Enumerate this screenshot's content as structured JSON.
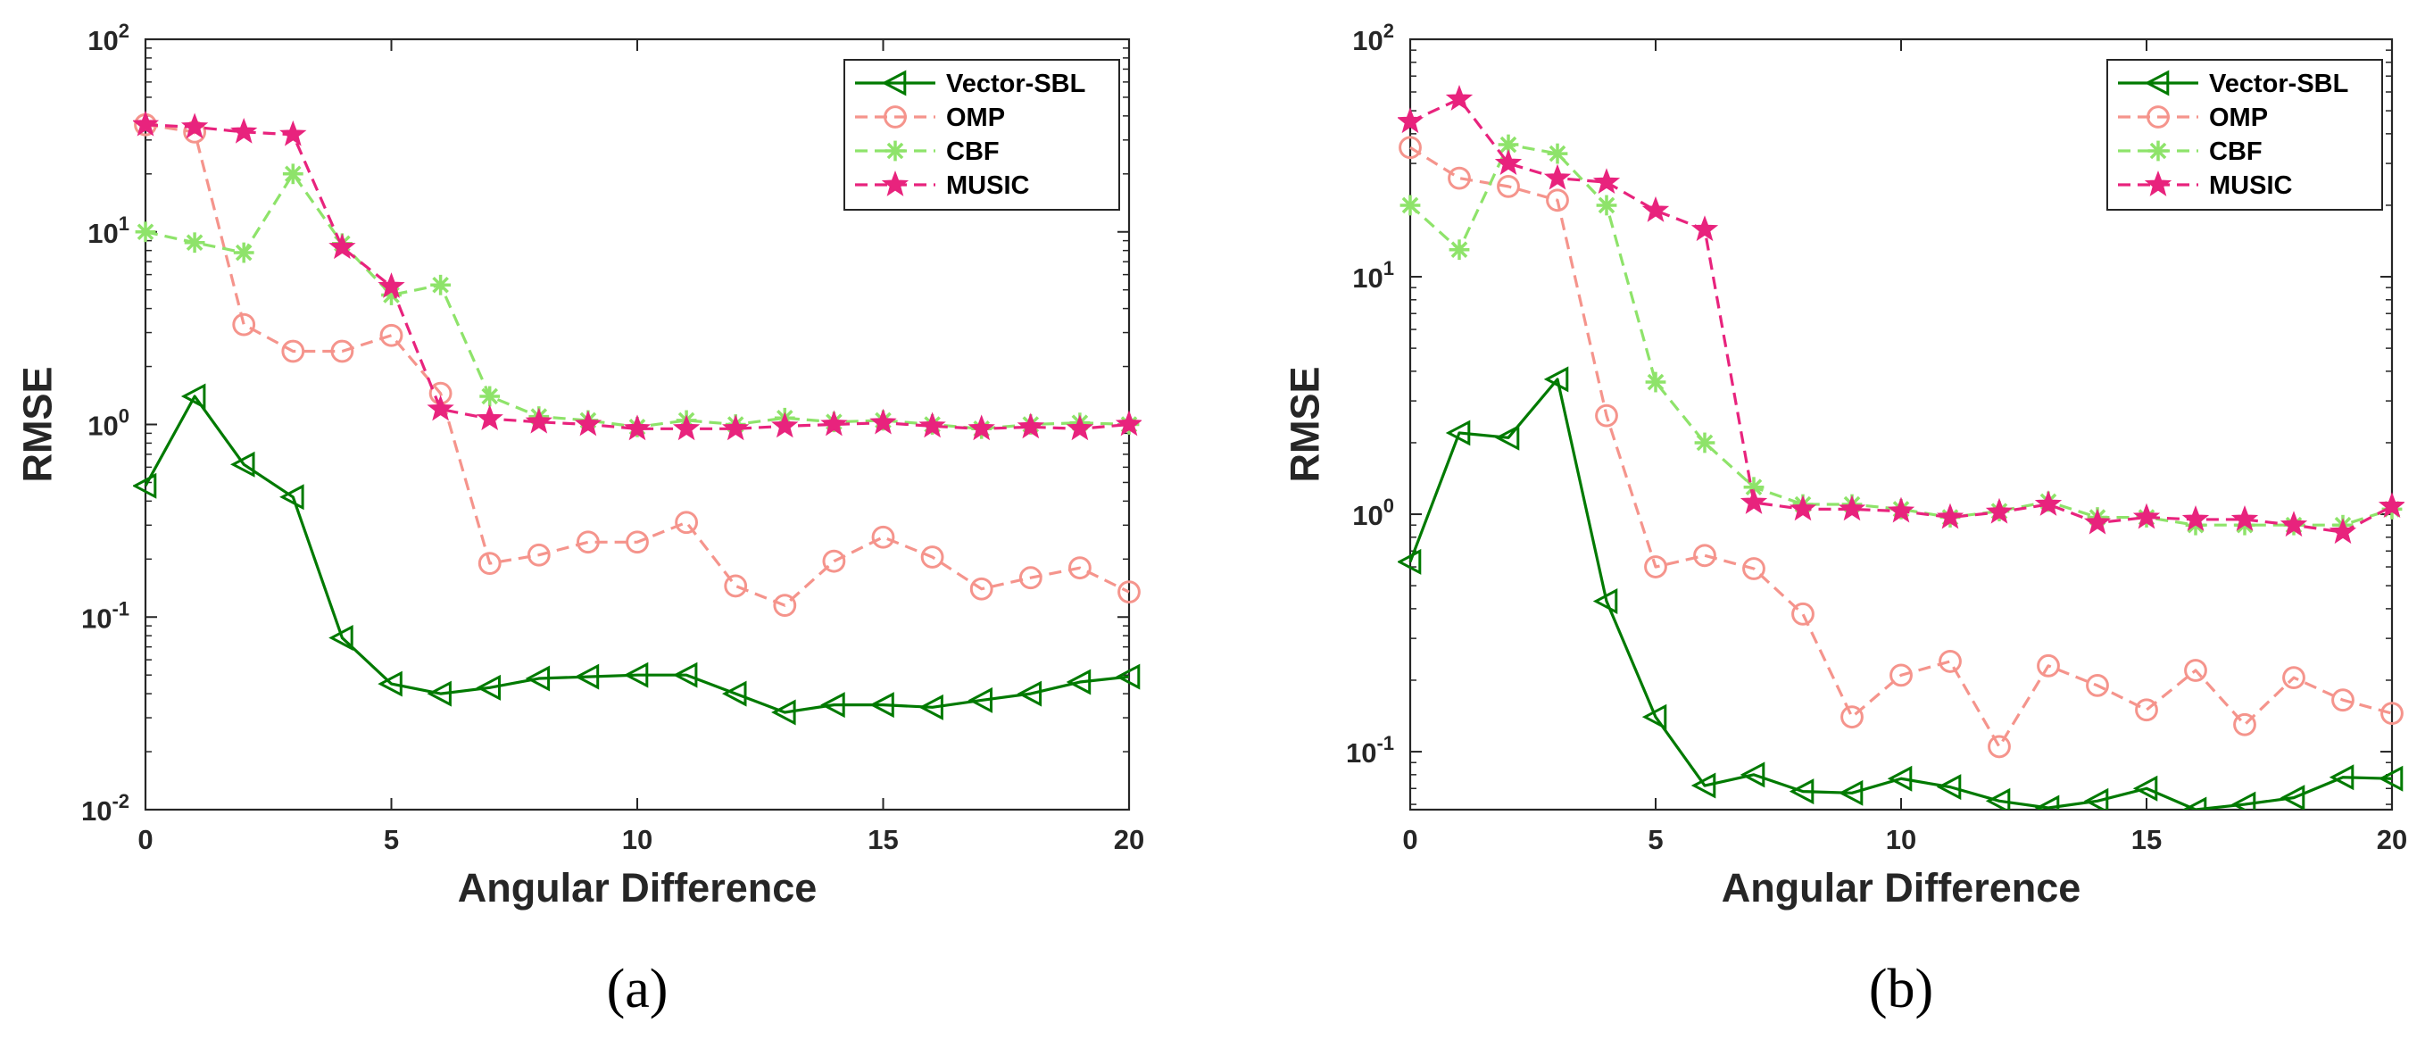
{
  "chart_data": [
    {
      "type": "line",
      "panel_label": "(a)",
      "xlabel": "Angular Difference",
      "ylabel": "RMSE",
      "yscale": "log",
      "xlim": [
        0,
        20
      ],
      "ylim": [
        0.01,
        100
      ],
      "xticks": [
        0,
        5,
        10,
        15,
        20
      ],
      "yticks": [
        0.01,
        0.1,
        1,
        10,
        100
      ],
      "ytick_labels": [
        {
          "base": "10",
          "exp": "-2"
        },
        {
          "base": "10",
          "exp": "-1"
        },
        {
          "base": "10",
          "exp": "0"
        },
        {
          "base": "10",
          "exp": "1"
        },
        {
          "base": "10",
          "exp": "2"
        }
      ],
      "legend_position": "top-right",
      "x": [
        0,
        1,
        2,
        3,
        4,
        5,
        6,
        7,
        8,
        9,
        10,
        11,
        12,
        13,
        14,
        15,
        16,
        17,
        18,
        19,
        20
      ],
      "series": [
        {
          "name": "Vector-SBL",
          "color": "#007a00",
          "dash": "solid",
          "marker": "triangle-left",
          "values": [
            0.48,
            1.4,
            0.62,
            0.42,
            0.078,
            0.045,
            0.04,
            0.043,
            0.048,
            0.049,
            0.05,
            0.05,
            0.04,
            0.032,
            0.035,
            0.035,
            0.034,
            0.037,
            0.04,
            0.046,
            0.049
          ]
        },
        {
          "name": "OMP",
          "color": "#f5948c",
          "dash": "dashed",
          "marker": "circle",
          "values": [
            36,
            33,
            3.3,
            2.4,
            2.4,
            2.9,
            1.45,
            0.19,
            0.21,
            0.245,
            0.245,
            0.31,
            0.145,
            0.115,
            0.195,
            0.26,
            0.205,
            0.14,
            0.16,
            0.18,
            0.135
          ]
        },
        {
          "name": "CBF",
          "color": "#8ee36a",
          "dash": "dashed",
          "marker": "asterisk",
          "values": [
            10,
            8.8,
            7.8,
            20,
            8.7,
            4.7,
            5.3,
            1.4,
            1.1,
            1.05,
            0.97,
            1.05,
            1.0,
            1.08,
            1.03,
            1.05,
            1.0,
            0.95,
            1.0,
            1.02,
            1.0
          ]
        },
        {
          "name": "MUSIC",
          "color": "#e8237d",
          "dash": "dashed",
          "marker": "star",
          "values": [
            36,
            35,
            33,
            32,
            8.3,
            5.2,
            1.2,
            1.07,
            1.03,
            1.0,
            0.95,
            0.95,
            0.95,
            0.98,
            1.0,
            1.02,
            0.98,
            0.95,
            0.97,
            0.95,
            1.0
          ]
        }
      ]
    },
    {
      "type": "line",
      "panel_label": "(b)",
      "xlabel": "Angular Difference",
      "ylabel": "RMSE",
      "yscale": "log",
      "xlim": [
        0,
        20
      ],
      "ylim": [
        0.057,
        100
      ],
      "xticks": [
        0,
        5,
        10,
        15,
        20
      ],
      "yticks": [
        0.1,
        1,
        10,
        100
      ],
      "ytick_labels": [
        {
          "base": "10",
          "exp": "-1"
        },
        {
          "base": "10",
          "exp": "0"
        },
        {
          "base": "10",
          "exp": "1"
        },
        {
          "base": "10",
          "exp": "2"
        }
      ],
      "legend_position": "top-right",
      "x": [
        0,
        1,
        2,
        3,
        4,
        5,
        6,
        7,
        8,
        9,
        10,
        11,
        12,
        13,
        14,
        15,
        16,
        17,
        18,
        19,
        20
      ],
      "series": [
        {
          "name": "Vector-SBL",
          "color": "#007a00",
          "dash": "solid",
          "marker": "triangle-left",
          "values": [
            0.63,
            2.2,
            2.1,
            3.7,
            0.43,
            0.14,
            0.072,
            0.08,
            0.068,
            0.067,
            0.077,
            0.071,
            0.062,
            0.058,
            0.062,
            0.07,
            0.057,
            0.06,
            0.064,
            0.078,
            0.077
          ]
        },
        {
          "name": "OMP",
          "color": "#f5948c",
          "dash": "dashed",
          "marker": "circle",
          "values": [
            35,
            26,
            24,
            21,
            2.6,
            0.6,
            0.67,
            0.59,
            0.38,
            0.14,
            0.21,
            0.24,
            0.105,
            0.23,
            0.19,
            0.15,
            0.22,
            0.13,
            0.205,
            0.165,
            0.145
          ]
        },
        {
          "name": "CBF",
          "color": "#8ee36a",
          "dash": "dashed",
          "marker": "asterisk",
          "values": [
            20,
            13,
            36,
            33,
            20,
            3.6,
            2.0,
            1.3,
            1.1,
            1.1,
            1.05,
            0.97,
            1.03,
            1.13,
            0.97,
            0.97,
            0.9,
            0.9,
            0.9,
            0.9,
            1.05
          ]
        },
        {
          "name": "MUSIC",
          "color": "#e8237d",
          "dash": "dashed",
          "marker": "star",
          "values": [
            45,
            56,
            30,
            26,
            25,
            19,
            15.8,
            1.12,
            1.05,
            1.05,
            1.03,
            0.97,
            1.02,
            1.1,
            0.92,
            0.97,
            0.95,
            0.95,
            0.9,
            0.84,
            1.08
          ]
        }
      ]
    }
  ]
}
